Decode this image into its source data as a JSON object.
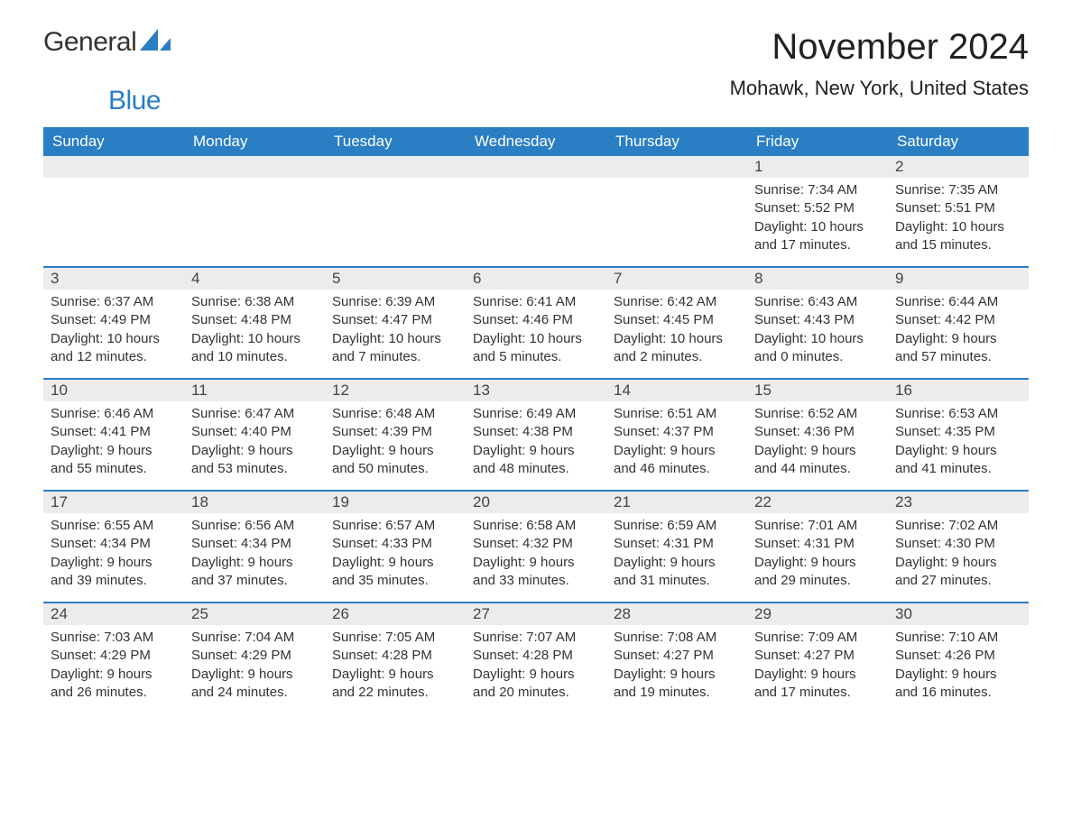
{
  "logo": {
    "text1": "General",
    "text2": "Blue"
  },
  "title": "November 2024",
  "location": "Mohawk, New York, United States",
  "colors": {
    "header_bg": "#2a7ec4",
    "header_text": "#ffffff",
    "daynum_bg": "#ececec",
    "border": "#2a7ec4",
    "body_text": "#333333",
    "page_bg": "#ffffff"
  },
  "daysOfWeek": [
    "Sunday",
    "Monday",
    "Tuesday",
    "Wednesday",
    "Thursday",
    "Friday",
    "Saturday"
  ],
  "weeks": [
    [
      {
        "day": "",
        "sunrise": "",
        "sunset": "",
        "daylight1": "",
        "daylight2": ""
      },
      {
        "day": "",
        "sunrise": "",
        "sunset": "",
        "daylight1": "",
        "daylight2": ""
      },
      {
        "day": "",
        "sunrise": "",
        "sunset": "",
        "daylight1": "",
        "daylight2": ""
      },
      {
        "day": "",
        "sunrise": "",
        "sunset": "",
        "daylight1": "",
        "daylight2": ""
      },
      {
        "day": "",
        "sunrise": "",
        "sunset": "",
        "daylight1": "",
        "daylight2": ""
      },
      {
        "day": "1",
        "sunrise": "Sunrise: 7:34 AM",
        "sunset": "Sunset: 5:52 PM",
        "daylight1": "Daylight: 10 hours",
        "daylight2": "and 17 minutes."
      },
      {
        "day": "2",
        "sunrise": "Sunrise: 7:35 AM",
        "sunset": "Sunset: 5:51 PM",
        "daylight1": "Daylight: 10 hours",
        "daylight2": "and 15 minutes."
      }
    ],
    [
      {
        "day": "3",
        "sunrise": "Sunrise: 6:37 AM",
        "sunset": "Sunset: 4:49 PM",
        "daylight1": "Daylight: 10 hours",
        "daylight2": "and 12 minutes."
      },
      {
        "day": "4",
        "sunrise": "Sunrise: 6:38 AM",
        "sunset": "Sunset: 4:48 PM",
        "daylight1": "Daylight: 10 hours",
        "daylight2": "and 10 minutes."
      },
      {
        "day": "5",
        "sunrise": "Sunrise: 6:39 AM",
        "sunset": "Sunset: 4:47 PM",
        "daylight1": "Daylight: 10 hours",
        "daylight2": "and 7 minutes."
      },
      {
        "day": "6",
        "sunrise": "Sunrise: 6:41 AM",
        "sunset": "Sunset: 4:46 PM",
        "daylight1": "Daylight: 10 hours",
        "daylight2": "and 5 minutes."
      },
      {
        "day": "7",
        "sunrise": "Sunrise: 6:42 AM",
        "sunset": "Sunset: 4:45 PM",
        "daylight1": "Daylight: 10 hours",
        "daylight2": "and 2 minutes."
      },
      {
        "day": "8",
        "sunrise": "Sunrise: 6:43 AM",
        "sunset": "Sunset: 4:43 PM",
        "daylight1": "Daylight: 10 hours",
        "daylight2": "and 0 minutes."
      },
      {
        "day": "9",
        "sunrise": "Sunrise: 6:44 AM",
        "sunset": "Sunset: 4:42 PM",
        "daylight1": "Daylight: 9 hours",
        "daylight2": "and 57 minutes."
      }
    ],
    [
      {
        "day": "10",
        "sunrise": "Sunrise: 6:46 AM",
        "sunset": "Sunset: 4:41 PM",
        "daylight1": "Daylight: 9 hours",
        "daylight2": "and 55 minutes."
      },
      {
        "day": "11",
        "sunrise": "Sunrise: 6:47 AM",
        "sunset": "Sunset: 4:40 PM",
        "daylight1": "Daylight: 9 hours",
        "daylight2": "and 53 minutes."
      },
      {
        "day": "12",
        "sunrise": "Sunrise: 6:48 AM",
        "sunset": "Sunset: 4:39 PM",
        "daylight1": "Daylight: 9 hours",
        "daylight2": "and 50 minutes."
      },
      {
        "day": "13",
        "sunrise": "Sunrise: 6:49 AM",
        "sunset": "Sunset: 4:38 PM",
        "daylight1": "Daylight: 9 hours",
        "daylight2": "and 48 minutes."
      },
      {
        "day": "14",
        "sunrise": "Sunrise: 6:51 AM",
        "sunset": "Sunset: 4:37 PM",
        "daylight1": "Daylight: 9 hours",
        "daylight2": "and 46 minutes."
      },
      {
        "day": "15",
        "sunrise": "Sunrise: 6:52 AM",
        "sunset": "Sunset: 4:36 PM",
        "daylight1": "Daylight: 9 hours",
        "daylight2": "and 44 minutes."
      },
      {
        "day": "16",
        "sunrise": "Sunrise: 6:53 AM",
        "sunset": "Sunset: 4:35 PM",
        "daylight1": "Daylight: 9 hours",
        "daylight2": "and 41 minutes."
      }
    ],
    [
      {
        "day": "17",
        "sunrise": "Sunrise: 6:55 AM",
        "sunset": "Sunset: 4:34 PM",
        "daylight1": "Daylight: 9 hours",
        "daylight2": "and 39 minutes."
      },
      {
        "day": "18",
        "sunrise": "Sunrise: 6:56 AM",
        "sunset": "Sunset: 4:34 PM",
        "daylight1": "Daylight: 9 hours",
        "daylight2": "and 37 minutes."
      },
      {
        "day": "19",
        "sunrise": "Sunrise: 6:57 AM",
        "sunset": "Sunset: 4:33 PM",
        "daylight1": "Daylight: 9 hours",
        "daylight2": "and 35 minutes."
      },
      {
        "day": "20",
        "sunrise": "Sunrise: 6:58 AM",
        "sunset": "Sunset: 4:32 PM",
        "daylight1": "Daylight: 9 hours",
        "daylight2": "and 33 minutes."
      },
      {
        "day": "21",
        "sunrise": "Sunrise: 6:59 AM",
        "sunset": "Sunset: 4:31 PM",
        "daylight1": "Daylight: 9 hours",
        "daylight2": "and 31 minutes."
      },
      {
        "day": "22",
        "sunrise": "Sunrise: 7:01 AM",
        "sunset": "Sunset: 4:31 PM",
        "daylight1": "Daylight: 9 hours",
        "daylight2": "and 29 minutes."
      },
      {
        "day": "23",
        "sunrise": "Sunrise: 7:02 AM",
        "sunset": "Sunset: 4:30 PM",
        "daylight1": "Daylight: 9 hours",
        "daylight2": "and 27 minutes."
      }
    ],
    [
      {
        "day": "24",
        "sunrise": "Sunrise: 7:03 AM",
        "sunset": "Sunset: 4:29 PM",
        "daylight1": "Daylight: 9 hours",
        "daylight2": "and 26 minutes."
      },
      {
        "day": "25",
        "sunrise": "Sunrise: 7:04 AM",
        "sunset": "Sunset: 4:29 PM",
        "daylight1": "Daylight: 9 hours",
        "daylight2": "and 24 minutes."
      },
      {
        "day": "26",
        "sunrise": "Sunrise: 7:05 AM",
        "sunset": "Sunset: 4:28 PM",
        "daylight1": "Daylight: 9 hours",
        "daylight2": "and 22 minutes."
      },
      {
        "day": "27",
        "sunrise": "Sunrise: 7:07 AM",
        "sunset": "Sunset: 4:28 PM",
        "daylight1": "Daylight: 9 hours",
        "daylight2": "and 20 minutes."
      },
      {
        "day": "28",
        "sunrise": "Sunrise: 7:08 AM",
        "sunset": "Sunset: 4:27 PM",
        "daylight1": "Daylight: 9 hours",
        "daylight2": "and 19 minutes."
      },
      {
        "day": "29",
        "sunrise": "Sunrise: 7:09 AM",
        "sunset": "Sunset: 4:27 PM",
        "daylight1": "Daylight: 9 hours",
        "daylight2": "and 17 minutes."
      },
      {
        "day": "30",
        "sunrise": "Sunrise: 7:10 AM",
        "sunset": "Sunset: 4:26 PM",
        "daylight1": "Daylight: 9 hours",
        "daylight2": "and 16 minutes."
      }
    ]
  ]
}
